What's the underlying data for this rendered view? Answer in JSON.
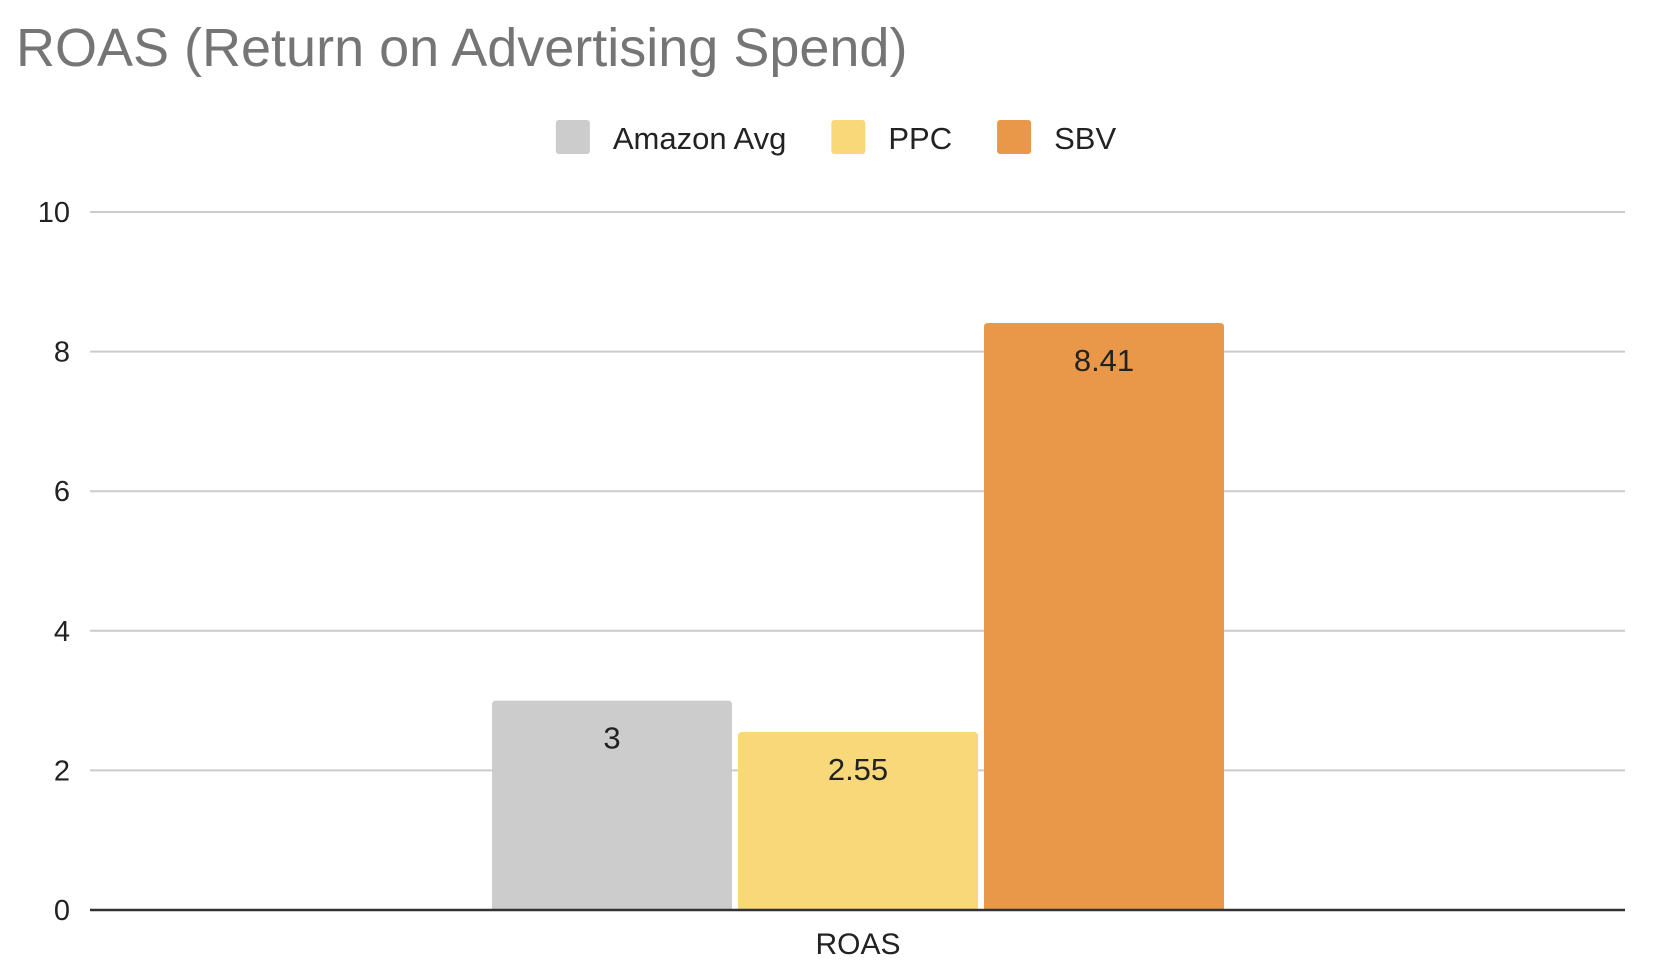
{
  "chart_data": {
    "type": "bar",
    "title": "ROAS (Return on Advertising Spend)",
    "categories": [
      "ROAS"
    ],
    "series": [
      {
        "name": "Amazon Avg",
        "values": [
          3
        ],
        "color": "#cccccc",
        "label": "3"
      },
      {
        "name": "PPC",
        "values": [
          2.55
        ],
        "color": "#f8d878",
        "label": "2.55"
      },
      {
        "name": "SBV",
        "values": [
          8.41
        ],
        "color": "#e89848",
        "label": "8.41"
      }
    ],
    "xlabel": "",
    "ylabel": "",
    "ylim": [
      0,
      10
    ],
    "yticks": [
      0,
      2,
      4,
      6,
      8,
      10
    ],
    "ytick_labels": [
      "0",
      "2",
      "4",
      "6",
      "8",
      "10"
    ],
    "grid": true,
    "legend_position": "top"
  }
}
